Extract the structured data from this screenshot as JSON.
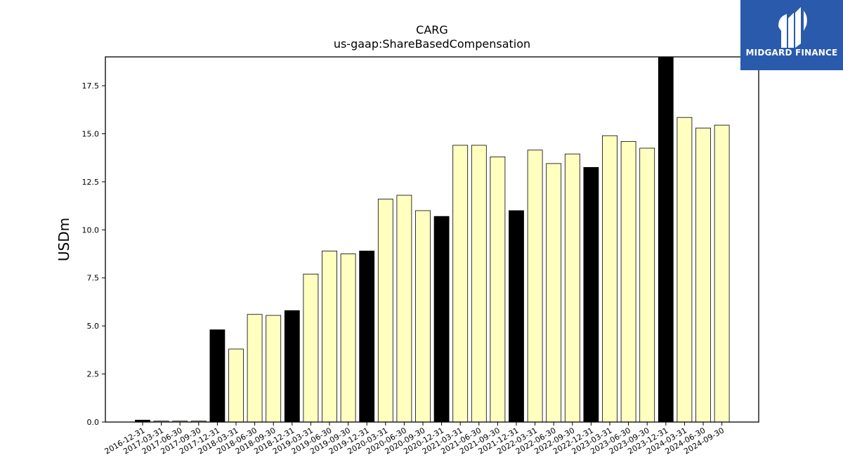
{
  "brand": {
    "name": "MIDGARD FINANCE",
    "bg_color": "#2a5aab",
    "mark_icon": "midgard-logo-icon"
  },
  "chart_data": {
    "type": "bar",
    "title": "CARG",
    "subtitle": "us-gaap:ShareBasedCompensation",
    "xlabel": "",
    "ylabel": "USDm",
    "ylim": [
      0,
      19.0
    ],
    "yticks": [
      "0.0",
      "2.5",
      "5.0",
      "7.5",
      "10.0",
      "12.5",
      "15.0",
      "17.5"
    ],
    "grid": false,
    "colors": {
      "annual": "#000000",
      "quarter": "#ffffc0",
      "edge": "#000000"
    },
    "categories": [
      "2016-12-31",
      "2017-03-31",
      "2017-06-30",
      "2017-09-30",
      "2017-12-31",
      "2018-03-31",
      "2018-06-30",
      "2018-09-30",
      "2018-12-31",
      "2019-03-31",
      "2019-06-30",
      "2019-09-30",
      "2019-12-31",
      "2020-03-31",
      "2020-06-30",
      "2020-09-30",
      "2020-12-31",
      "2021-03-31",
      "2021-06-30",
      "2021-09-30",
      "2021-12-31",
      "2022-03-31",
      "2022-06-30",
      "2022-09-30",
      "2022-12-31",
      "2023-03-31",
      "2023-06-30",
      "2023-09-30",
      "2023-12-31",
      "2024-03-31",
      "2024-06-30",
      "2024-09-30"
    ],
    "values": [
      0.1,
      0.05,
      0.05,
      0.05,
      4.8,
      3.8,
      5.6,
      5.55,
      5.8,
      7.7,
      8.9,
      8.75,
      8.9,
      11.6,
      11.8,
      11.0,
      10.7,
      14.4,
      14.4,
      13.8,
      11.0,
      14.15,
      13.45,
      13.95,
      13.25,
      14.9,
      14.6,
      14.25,
      19.0,
      15.85,
      15.3,
      15.45
    ],
    "annual_flags": [
      true,
      false,
      false,
      false,
      true,
      false,
      false,
      false,
      true,
      false,
      false,
      false,
      true,
      false,
      false,
      false,
      true,
      false,
      false,
      false,
      true,
      false,
      false,
      false,
      true,
      false,
      false,
      false,
      true,
      false,
      false,
      false
    ]
  }
}
